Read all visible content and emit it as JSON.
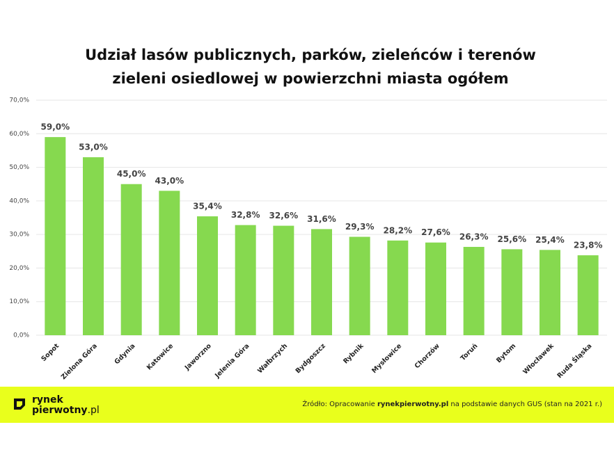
{
  "chart_data": {
    "type": "bar",
    "title": [
      "Udział lasów publicznych, parków, zieleńców i terenów",
      "zieleni osiedlowej w powierzchni miasta ogółem"
    ],
    "categories": [
      "Sopot",
      "Zielona Góra",
      "Gdynia",
      "Katowice",
      "Jaworzno",
      "Jelenia Góra",
      "Wałbrzych",
      "Bydgoszcz",
      "Rybnik",
      "Mysłowice",
      "Chorzów",
      "Toruń",
      "Bytom",
      "Włocławek",
      "Ruda Śląska"
    ],
    "values": [
      59.0,
      53.0,
      45.0,
      43.0,
      35.4,
      32.8,
      32.6,
      31.6,
      29.3,
      28.2,
      27.6,
      26.3,
      25.6,
      25.4,
      23.8
    ],
    "value_labels": [
      "59,0%",
      "53,0%",
      "45,0%",
      "43,0%",
      "35,4%",
      "32,8%",
      "32,6%",
      "31,6%",
      "29,3%",
      "28,2%",
      "27,6%",
      "26,3%",
      "25,6%",
      "25,4%",
      "23,8%"
    ],
    "color": "#86d94f",
    "ylim": [
      0,
      70
    ],
    "yticks": [
      {
        "value": 0,
        "label": "0,0%"
      },
      {
        "value": 10,
        "label": "10,0%"
      },
      {
        "value": 20,
        "label": "20,0%"
      },
      {
        "value": 30,
        "label": "30,0%"
      },
      {
        "value": 40,
        "label": "40,0%"
      },
      {
        "value": 50,
        "label": "50,0%"
      },
      {
        "value": 60,
        "label": "60,0%"
      },
      {
        "value": 70,
        "label": "70,0%"
      }
    ],
    "grid": true
  },
  "footer": {
    "logo": [
      "rynek",
      "pierwotny",
      ".pl"
    ],
    "source": [
      "Źródło: Opracowanie ",
      "rynekpierwotny.pl",
      " na podstawie danych GUS (stan na 2021 r.)"
    ]
  }
}
